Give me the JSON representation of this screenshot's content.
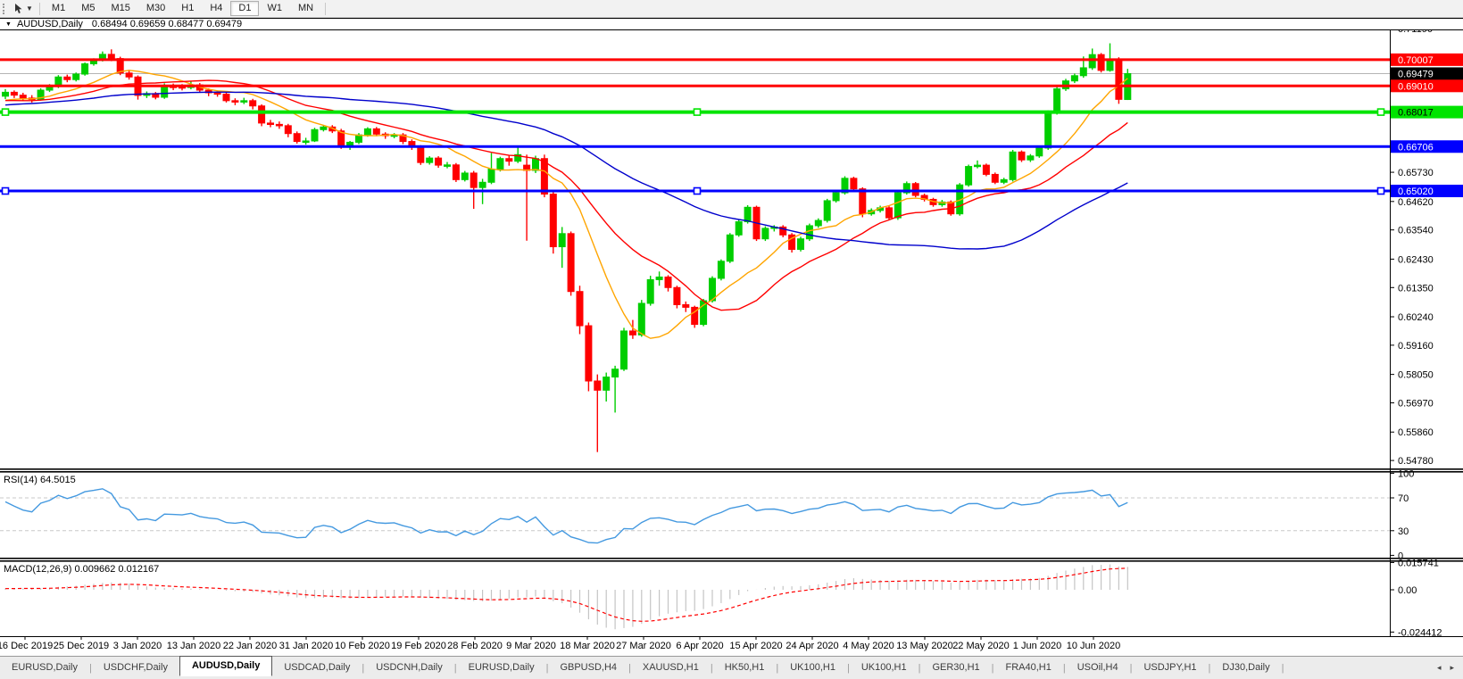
{
  "toolbar": {
    "tool_icon": "cursor-pointer",
    "timeframes": [
      "M1",
      "M5",
      "M15",
      "M30",
      "H1",
      "H4",
      "D1",
      "W1",
      "MN"
    ],
    "active_timeframe": "D1"
  },
  "window_title": {
    "symbol": "AUDUSD,Daily",
    "ohlc": "0.68494 0.69659 0.68477 0.69479"
  },
  "chart_data": {
    "type": "candlestick",
    "symbol": "AUDUSD",
    "timeframe": "Daily",
    "ohlc_display": {
      "open": "0.68494",
      "high": "0.69659",
      "low": "0.68477",
      "close": "0.69479"
    },
    "colors": {
      "up_candle": "#00CE00",
      "down_candle": "#FF0000",
      "ma_fast": "#FFA500",
      "ma_mid": "#FF0000",
      "ma_slow": "#0000CC",
      "current_price_line": "#B4B4B4",
      "rsi_line": "#4499E0",
      "macd_histogram": "#C4C4C4",
      "macd_signal": "#FF0000"
    },
    "price_axis_ticks": [
      "0.71190",
      "0.65730",
      "0.64620",
      "0.63540",
      "0.62430",
      "0.61350",
      "0.60240",
      "0.59160",
      "0.58050",
      "0.56970",
      "0.55860",
      "0.54780"
    ],
    "price_lines": [
      {
        "value": 0.70007,
        "label": "0.70007",
        "color": "#FF0000",
        "text": "#FFFFFF",
        "width": 3,
        "selected": false,
        "kind": "resistance"
      },
      {
        "value": 0.69479,
        "label": "0.69479",
        "color": "#000000",
        "text": "#FFFFFF",
        "width": 1,
        "selected": false,
        "kind": "current-price"
      },
      {
        "value": 0.6901,
        "label": "0.69010",
        "color": "#FF0000",
        "text": "#FFFFFF",
        "width": 3,
        "selected": false,
        "kind": "resistance"
      },
      {
        "value": 0.68017,
        "label": "0.68017",
        "color": "#00E400",
        "text": "#000000",
        "width": 4,
        "selected": true,
        "kind": "support"
      },
      {
        "value": 0.66706,
        "label": "0.66706",
        "color": "#0000FF",
        "text": "#FFFFFF",
        "width": 3,
        "selected": false,
        "kind": "support"
      },
      {
        "value": 0.6502,
        "label": "0.65020",
        "color": "#0000FF",
        "text": "#FFFFFF",
        "width": 3,
        "selected": true,
        "kind": "support"
      }
    ],
    "date_labels": [
      "16 Dec 2019",
      "25 Dec 2019",
      "3 Jan 2020",
      "13 Jan 2020",
      "22 Jan 2020",
      "31 Jan 2020",
      "10 Feb 2020",
      "19 Feb 2020",
      "28 Feb 2020",
      "9 Mar 2020",
      "18 Mar 2020",
      "27 Mar 2020",
      "6 Apr 2020",
      "15 Apr 2020",
      "24 Apr 2020",
      "4 May 2020",
      "13 May 2020",
      "22 May 2020",
      "1 Jun 2020",
      "10 Jun 2020"
    ],
    "moving_averages": [
      {
        "period": 10,
        "color": "#FFA500"
      },
      {
        "period": 20,
        "color": "#FF0000"
      },
      {
        "period": 50,
        "color": "#0000CC"
      }
    ],
    "prehistory_closes": [
      0.671,
      0.6725,
      0.674,
      0.6735,
      0.675,
      0.6762,
      0.6748,
      0.6755,
      0.677,
      0.6785,
      0.6778,
      0.679,
      0.6802,
      0.6795,
      0.681,
      0.68,
      0.6788,
      0.6795,
      0.6808,
      0.6815,
      0.6825,
      0.6818,
      0.683,
      0.684,
      0.6832,
      0.6845,
      0.6855,
      0.6848,
      0.6838,
      0.6852,
      0.686,
      0.685,
      0.6842,
      0.6835,
      0.6845,
      0.6858,
      0.6868,
      0.686,
      0.6852,
      0.6845,
      0.6838,
      0.683,
      0.6825,
      0.6835,
      0.6848,
      0.684,
      0.6832,
      0.684,
      0.685,
      0.6845,
      0.6838,
      0.683,
      0.6842,
      0.6855,
      0.686
    ],
    "candles": [
      [
        0.6862,
        0.6889,
        0.6851,
        0.6877
      ],
      [
        0.6877,
        0.6884,
        0.6855,
        0.6866
      ],
      [
        0.6866,
        0.6875,
        0.6843,
        0.6855
      ],
      [
        0.6855,
        0.6866,
        0.6838,
        0.685
      ],
      [
        0.685,
        0.6892,
        0.6845,
        0.6885
      ],
      [
        0.6885,
        0.6908,
        0.6878,
        0.69
      ],
      [
        0.69,
        0.6942,
        0.6893,
        0.6935
      ],
      [
        0.6935,
        0.6944,
        0.6915,
        0.6925
      ],
      [
        0.6925,
        0.6952,
        0.6918,
        0.6946
      ],
      [
        0.6946,
        0.699,
        0.694,
        0.6985
      ],
      [
        0.6985,
        0.7006,
        0.6978,
        0.7
      ],
      [
        0.7,
        0.7032,
        0.6994,
        0.7021
      ],
      [
        0.7021,
        0.704,
        0.6995,
        0.7005
      ],
      [
        0.7005,
        0.7012,
        0.6942,
        0.695
      ],
      [
        0.695,
        0.6962,
        0.6925,
        0.6935
      ],
      [
        0.6935,
        0.6941,
        0.6849,
        0.6865
      ],
      [
        0.6865,
        0.688,
        0.6855,
        0.6872
      ],
      [
        0.6872,
        0.6878,
        0.685,
        0.6858
      ],
      [
        0.6858,
        0.6911,
        0.6852,
        0.69
      ],
      [
        0.69,
        0.691,
        0.6885,
        0.6898
      ],
      [
        0.6898,
        0.6908,
        0.6884,
        0.6895
      ],
      [
        0.6895,
        0.692,
        0.6888,
        0.6905
      ],
      [
        0.6905,
        0.6912,
        0.6875,
        0.6885
      ],
      [
        0.6885,
        0.6892,
        0.6862,
        0.6875
      ],
      [
        0.6875,
        0.6884,
        0.686,
        0.687
      ],
      [
        0.687,
        0.6878,
        0.6838,
        0.6845
      ],
      [
        0.6845,
        0.6854,
        0.6828,
        0.684
      ],
      [
        0.684,
        0.6856,
        0.6832,
        0.6845
      ],
      [
        0.6845,
        0.6852,
        0.6812,
        0.6825
      ],
      [
        0.6825,
        0.6831,
        0.6748,
        0.676
      ],
      [
        0.676,
        0.6772,
        0.6744,
        0.6755
      ],
      [
        0.6755,
        0.6766,
        0.6738,
        0.675
      ],
      [
        0.675,
        0.6757,
        0.6706,
        0.672
      ],
      [
        0.672,
        0.6728,
        0.6682,
        0.669
      ],
      [
        0.669,
        0.6704,
        0.6678,
        0.6692
      ],
      [
        0.6692,
        0.6742,
        0.6688,
        0.6735
      ],
      [
        0.6735,
        0.6752,
        0.6728,
        0.6745
      ],
      [
        0.6745,
        0.6752,
        0.6722,
        0.673
      ],
      [
        0.673,
        0.6738,
        0.6662,
        0.667
      ],
      [
        0.667,
        0.6692,
        0.6658,
        0.6687
      ],
      [
        0.6687,
        0.6722,
        0.668,
        0.6715
      ],
      [
        0.6715,
        0.6744,
        0.6708,
        0.6738
      ],
      [
        0.6738,
        0.6745,
        0.671,
        0.6718
      ],
      [
        0.6718,
        0.6725,
        0.67,
        0.6712
      ],
      [
        0.6712,
        0.6722,
        0.6702,
        0.6715
      ],
      [
        0.6715,
        0.6722,
        0.668,
        0.669
      ],
      [
        0.669,
        0.6698,
        0.6658,
        0.667
      ],
      [
        0.667,
        0.6676,
        0.6601,
        0.661
      ],
      [
        0.661,
        0.6634,
        0.6602,
        0.6627
      ],
      [
        0.6627,
        0.6634,
        0.659,
        0.66
      ],
      [
        0.66,
        0.6612,
        0.6588,
        0.6601
      ],
      [
        0.6601,
        0.6608,
        0.6536,
        0.6545
      ],
      [
        0.6545,
        0.6578,
        0.6538,
        0.657
      ],
      [
        0.657,
        0.6578,
        0.6434,
        0.6515
      ],
      [
        0.6515,
        0.6548,
        0.6452,
        0.6535
      ],
      [
        0.6535,
        0.6646,
        0.6528,
        0.6585
      ],
      [
        0.6585,
        0.6632,
        0.6576,
        0.6625
      ],
      [
        0.6625,
        0.6638,
        0.6598,
        0.6615
      ],
      [
        0.6615,
        0.667,
        0.6608,
        0.664
      ],
      [
        0.66,
        0.664,
        0.6313,
        0.658
      ],
      [
        0.658,
        0.6636,
        0.657,
        0.6625
      ],
      [
        0.6625,
        0.664,
        0.6478,
        0.649
      ],
      [
        0.649,
        0.6502,
        0.6264,
        0.629
      ],
      [
        0.629,
        0.6365,
        0.621,
        0.634
      ],
      [
        0.634,
        0.6348,
        0.6104,
        0.612
      ],
      [
        0.612,
        0.6142,
        0.5958,
        0.599
      ],
      [
        0.599,
        0.6002,
        0.5741,
        0.578
      ],
      [
        0.578,
        0.5805,
        0.551,
        0.5745
      ],
      [
        0.5745,
        0.5812,
        0.5702,
        0.5795
      ],
      [
        0.5795,
        0.5838,
        0.566,
        0.5825
      ],
      [
        0.5825,
        0.5982,
        0.5818,
        0.597
      ],
      [
        0.597,
        0.6012,
        0.594,
        0.5955
      ],
      [
        0.5955,
        0.6088,
        0.5948,
        0.6075
      ],
      [
        0.6075,
        0.618,
        0.6066,
        0.6165
      ],
      [
        0.6165,
        0.6196,
        0.6142,
        0.6175
      ],
      [
        0.6175,
        0.6182,
        0.612,
        0.6135
      ],
      [
        0.6135,
        0.6142,
        0.6056,
        0.607
      ],
      [
        0.607,
        0.6082,
        0.6042,
        0.606
      ],
      [
        0.606,
        0.6066,
        0.5982,
        0.5995
      ],
      [
        0.5995,
        0.6092,
        0.5988,
        0.6085
      ],
      [
        0.6085,
        0.6178,
        0.6078,
        0.617
      ],
      [
        0.617,
        0.6242,
        0.6162,
        0.6235
      ],
      [
        0.6235,
        0.6342,
        0.6228,
        0.6335
      ],
      [
        0.6335,
        0.6392,
        0.6328,
        0.6385
      ],
      [
        0.6385,
        0.6448,
        0.6378,
        0.644
      ],
      [
        0.644,
        0.6446,
        0.6312,
        0.632
      ],
      [
        0.632,
        0.6368,
        0.6312,
        0.636
      ],
      [
        0.636,
        0.6372,
        0.6348,
        0.6365
      ],
      [
        0.6365,
        0.6372,
        0.6326,
        0.6335
      ],
      [
        0.6335,
        0.6342,
        0.6268,
        0.628
      ],
      [
        0.628,
        0.6328,
        0.6272,
        0.632
      ],
      [
        0.632,
        0.6378,
        0.6312,
        0.637
      ],
      [
        0.637,
        0.6398,
        0.6362,
        0.639
      ],
      [
        0.639,
        0.6472,
        0.6382,
        0.6465
      ],
      [
        0.6465,
        0.6502,
        0.6458,
        0.6495
      ],
      [
        0.6495,
        0.6558,
        0.6488,
        0.655
      ],
      [
        0.655,
        0.6556,
        0.6502,
        0.651
      ],
      [
        0.651,
        0.6516,
        0.6402,
        0.6415
      ],
      [
        0.6415,
        0.6436,
        0.6408,
        0.6428
      ],
      [
        0.6428,
        0.6446,
        0.642,
        0.6438
      ],
      [
        0.6438,
        0.6444,
        0.6392,
        0.64
      ],
      [
        0.64,
        0.6502,
        0.6392,
        0.6495
      ],
      [
        0.6495,
        0.6538,
        0.6488,
        0.653
      ],
      [
        0.653,
        0.6536,
        0.6478,
        0.6485
      ],
      [
        0.6485,
        0.6492,
        0.6462,
        0.647
      ],
      [
        0.647,
        0.6476,
        0.6442,
        0.645
      ],
      [
        0.645,
        0.6468,
        0.6442,
        0.646
      ],
      [
        0.646,
        0.6466,
        0.6408,
        0.6415
      ],
      [
        0.6415,
        0.6532,
        0.6408,
        0.6525
      ],
      [
        0.6525,
        0.6602,
        0.6518,
        0.6595
      ],
      [
        0.6595,
        0.6618,
        0.6588,
        0.66
      ],
      [
        0.66,
        0.6606,
        0.6558,
        0.6565
      ],
      [
        0.6565,
        0.6572,
        0.6528,
        0.6535
      ],
      [
        0.6535,
        0.6552,
        0.6528,
        0.6545
      ],
      [
        0.6545,
        0.6658,
        0.6538,
        0.665
      ],
      [
        0.665,
        0.6656,
        0.6612,
        0.662
      ],
      [
        0.662,
        0.6642,
        0.6612,
        0.6635
      ],
      [
        0.6635,
        0.6672,
        0.6628,
        0.6665
      ],
      [
        0.6665,
        0.6808,
        0.6658,
        0.68
      ],
      [
        0.68,
        0.6898,
        0.6792,
        0.689
      ],
      [
        0.689,
        0.6928,
        0.6882,
        0.692
      ],
      [
        0.692,
        0.6948,
        0.6912,
        0.694
      ],
      [
        0.694,
        0.7013,
        0.6932,
        0.697
      ],
      [
        0.697,
        0.7043,
        0.6962,
        0.702
      ],
      [
        0.702,
        0.7026,
        0.6952,
        0.696
      ],
      [
        0.696,
        0.7063,
        0.6955,
        0.7
      ],
      [
        0.7,
        0.701,
        0.6833,
        0.685
      ],
      [
        0.68494,
        0.69659,
        0.68477,
        0.69479
      ]
    ],
    "rsi": {
      "label": "RSI(14) 64.5015",
      "period": 14,
      "current_value": 64.5015,
      "axis_labels": [
        "100",
        "70",
        "30",
        "0"
      ],
      "levels": [
        70,
        30
      ]
    },
    "macd": {
      "label": "MACD(12,26,9) 0.009662 0.012167",
      "fast": 12,
      "slow": 26,
      "signal": 9,
      "current_value": 0.009662,
      "current_signal": 0.012167,
      "axis_labels": [
        "0.015741",
        "0.00",
        "-0.024412"
      ],
      "axis_values": [
        0.015741,
        0,
        -0.024412
      ]
    }
  },
  "tabs": {
    "items": [
      "EURUSD,Daily",
      "USDCHF,Daily",
      "AUDUSD,Daily",
      "USDCAD,Daily",
      "USDCNH,Daily",
      "EURUSD,Daily",
      "GBPUSD,H4",
      "XAUUSD,H1",
      "HK50,H1",
      "UK100,H1",
      "UK100,H1",
      "GER30,H1",
      "FRA40,H1",
      "USOil,H4",
      "USDJPY,H1",
      "DJ30,Daily"
    ],
    "active_index": 2,
    "left_arrow": "◂",
    "right_arrow": "▸"
  }
}
